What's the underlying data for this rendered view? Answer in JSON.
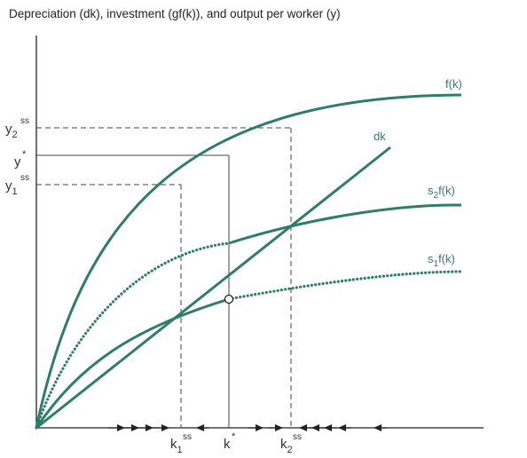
{
  "title": "Depreciation (dk), investment (gf(k)), and output per worker (y)",
  "colors": {
    "curve": "#2f7d68",
    "axis": "#222222",
    "guide": "#444444",
    "text": "#333333"
  },
  "curves": {
    "f": "f(k)",
    "dk": "dk",
    "s2_main": "s",
    "s2_sub": "2",
    "s2_tail": "f(k)",
    "s1_main": "s",
    "s1_sub": "1",
    "s1_tail": "f(k)"
  },
  "y_labels": {
    "y2_main": "y",
    "y2_sub": "2",
    "y2_sup": "ss",
    "ystar_main": "y",
    "ystar_sup": "*",
    "y1_main": "y",
    "y1_sub": "1",
    "y1_sup": "ss"
  },
  "x_labels": {
    "k1_main": "k",
    "k1_sub": "1",
    "k1_sup": "ss",
    "kstar_main": "k",
    "kstar_sup": "*",
    "k2_main": "k",
    "k2_sub": "2",
    "k2_sup": "ss"
  }
}
